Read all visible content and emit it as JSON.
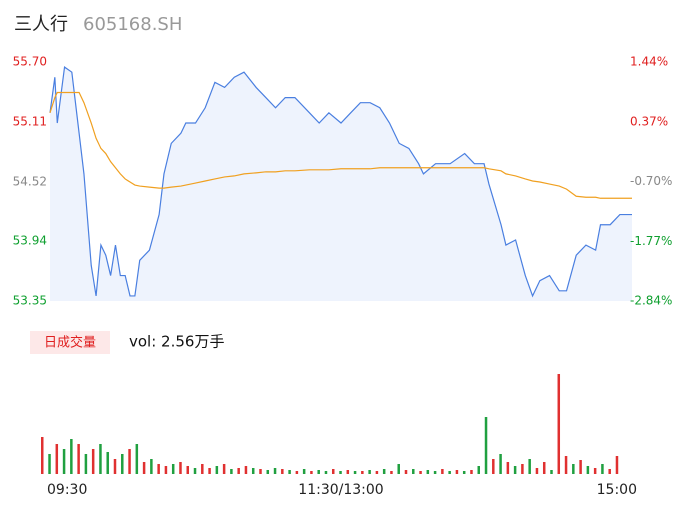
{
  "header": {
    "name": "三人行",
    "code": "605168.SH"
  },
  "volume_tab": {
    "label": "日成交量",
    "summary": "vol: 2.56万手"
  },
  "chart_data": [
    {
      "type": "line",
      "x": [
        0,
        2,
        3,
        6,
        9,
        12,
        14,
        17,
        19,
        21,
        23,
        25,
        27,
        29,
        31,
        33,
        35,
        37,
        41,
        45,
        47,
        50,
        54,
        56,
        60,
        64,
        68,
        72,
        76,
        80,
        85,
        89,
        93,
        97,
        101,
        107,
        111,
        115,
        120,
        124,
        128,
        132,
        136,
        140,
        144,
        148,
        152,
        154,
        159,
        165,
        171,
        175,
        179,
        181,
        186,
        188,
        192,
        196,
        199,
        202,
        206,
        210,
        213,
        217,
        221,
        225,
        227,
        231,
        235,
        240
      ],
      "series": [
        {
          "color": "#4a7fe0",
          "values": [
            55.2,
            55.55,
            55.1,
            55.65,
            55.6,
            55.0,
            54.6,
            53.7,
            53.4,
            53.9,
            53.8,
            53.6,
            53.9,
            53.6,
            53.6,
            53.4,
            53.4,
            53.75,
            53.85,
            54.2,
            54.6,
            54.9,
            55.0,
            55.1,
            55.1,
            55.25,
            55.5,
            55.45,
            55.55,
            55.6,
            55.45,
            55.35,
            55.25,
            55.35,
            55.35,
            55.2,
            55.1,
            55.2,
            55.1,
            55.2,
            55.3,
            55.3,
            55.25,
            55.1,
            54.9,
            54.85,
            54.7,
            54.6,
            54.7,
            54.7,
            54.8,
            54.7,
            54.7,
            54.5,
            54.1,
            53.9,
            53.95,
            53.6,
            53.4,
            53.55,
            53.6,
            53.45,
            53.45,
            53.8,
            53.9,
            53.85,
            54.1,
            54.1,
            54.2,
            54.2
          ]
        },
        {
          "color": "#f0a020",
          "values": [
            55.2,
            55.35,
            55.4,
            55.4,
            55.4,
            55.4,
            55.3,
            55.1,
            54.95,
            54.85,
            54.8,
            54.72,
            54.66,
            54.6,
            54.55,
            54.52,
            54.49,
            54.48,
            54.47,
            54.46,
            54.46,
            54.47,
            54.48,
            54.49,
            54.51,
            54.53,
            54.55,
            54.57,
            54.58,
            54.6,
            54.61,
            54.62,
            54.62,
            54.63,
            54.63,
            54.64,
            54.64,
            54.64,
            54.65,
            54.65,
            54.65,
            54.65,
            54.66,
            54.66,
            54.66,
            54.66,
            54.66,
            54.66,
            54.66,
            54.66,
            54.66,
            54.66,
            54.66,
            54.65,
            54.63,
            54.6,
            54.58,
            54.55,
            54.53,
            54.52,
            54.5,
            54.48,
            54.45,
            54.38,
            54.37,
            54.37,
            54.36,
            54.36,
            54.36,
            54.36
          ]
        }
      ],
      "xlim": [
        0,
        240
      ],
      "xticks": [
        {
          "value": 0,
          "label": "09:30"
        },
        {
          "value": 120,
          "label": "11:30/13:00"
        },
        {
          "value": 240,
          "label": "15:00"
        }
      ],
      "ylim": [
        53.35,
        55.7
      ],
      "yticks": [
        {
          "value": 55.7,
          "label": "55.70"
        },
        {
          "value": 55.11,
          "label": "55.11"
        },
        {
          "value": 54.52,
          "label": "54.52"
        },
        {
          "value": 53.94,
          "label": "53.94"
        },
        {
          "value": 53.35,
          "label": "53.35"
        }
      ],
      "ytick_colors": [
        "#e02020",
        "#e02020",
        "#888888",
        "#10a030",
        "#10a030"
      ],
      "y2lim": [
        -2.84,
        1.44
      ],
      "y2ticks": [
        {
          "value": 1.44,
          "label": "1.44%"
        },
        {
          "value": 0.37,
          "label": "0.37%"
        },
        {
          "value": -0.7,
          "label": "-0.70%"
        },
        {
          "value": -1.77,
          "label": "-1.77%"
        },
        {
          "value": -2.84,
          "label": "-2.84%"
        }
      ]
    },
    {
      "type": "bar",
      "x": [
        0,
        3,
        6,
        9,
        12,
        15,
        18,
        21,
        24,
        27,
        30,
        33,
        36,
        39,
        42,
        45,
        48,
        51,
        54,
        57,
        60,
        63,
        66,
        69,
        72,
        75,
        78,
        81,
        84,
        87,
        90,
        93,
        96,
        99,
        102,
        105,
        108,
        111,
        114,
        117,
        120,
        123,
        126,
        129,
        132,
        135,
        138,
        141,
        144,
        147,
        150,
        153,
        156,
        159,
        162,
        165,
        168,
        171,
        174,
        177,
        180,
        183,
        186,
        189,
        192,
        195,
        198,
        201,
        204,
        207,
        210,
        213,
        216,
        219,
        222,
        225,
        228,
        231,
        234,
        237
      ],
      "values": [
        37,
        20,
        30,
        25,
        35,
        30,
        20,
        25,
        30,
        22,
        15,
        20,
        25,
        30,
        12,
        15,
        10,
        8,
        10,
        12,
        8,
        6,
        10,
        6,
        8,
        10,
        5,
        6,
        8,
        6,
        5,
        4,
        6,
        5,
        4,
        3,
        5,
        3,
        4,
        3,
        5,
        3,
        4,
        3,
        3,
        4,
        3,
        5,
        3,
        10,
        4,
        5,
        3,
        4,
        3,
        5,
        3,
        4,
        3,
        4,
        8,
        57,
        15,
        20,
        12,
        8,
        10,
        15,
        6,
        12,
        4,
        100,
        18,
        10,
        14,
        8,
        6,
        10,
        5,
        18
      ],
      "colors": [
        "#e03030",
        "#20a040",
        "#e03030",
        "#20a040",
        "#20a040",
        "#e03030",
        "#20a040",
        "#e03030",
        "#20a040",
        "#20a040",
        "#e03030",
        "#20a040",
        "#e03030",
        "#20a040",
        "#e03030",
        "#20a040",
        "#e03030",
        "#e03030",
        "#20a040",
        "#e03030",
        "#e03030",
        "#20a040",
        "#e03030",
        "#e03030",
        "#20a040",
        "#e03030",
        "#20a040",
        "#e03030",
        "#e03030",
        "#20a040",
        "#e03030",
        "#20a040",
        "#20a040",
        "#e03030",
        "#20a040",
        "#e03030",
        "#20a040",
        "#e03030",
        "#20a040",
        "#20a040",
        "#e03030",
        "#20a040",
        "#e03030",
        "#20a040",
        "#e03030",
        "#20a040",
        "#e03030",
        "#20a040",
        "#e03030",
        "#20a040",
        "#e03030",
        "#20a040",
        "#e03030",
        "#20a040",
        "#20a040",
        "#e03030",
        "#20a040",
        "#e03030",
        "#20a040",
        "#e03030",
        "#20a040",
        "#20a040",
        "#e03030",
        "#20a040",
        "#e03030",
        "#20a040",
        "#e03030",
        "#20a040",
        "#e03030",
        "#e03030",
        "#20a040",
        "#e03030",
        "#e03030",
        "#20a040",
        "#e03030",
        "#20a040",
        "#e03030",
        "#20a040",
        "#e03030",
        "#e03030"
      ],
      "xlim": [
        0,
        240
      ],
      "ylim": [
        0,
        100
      ]
    }
  ]
}
